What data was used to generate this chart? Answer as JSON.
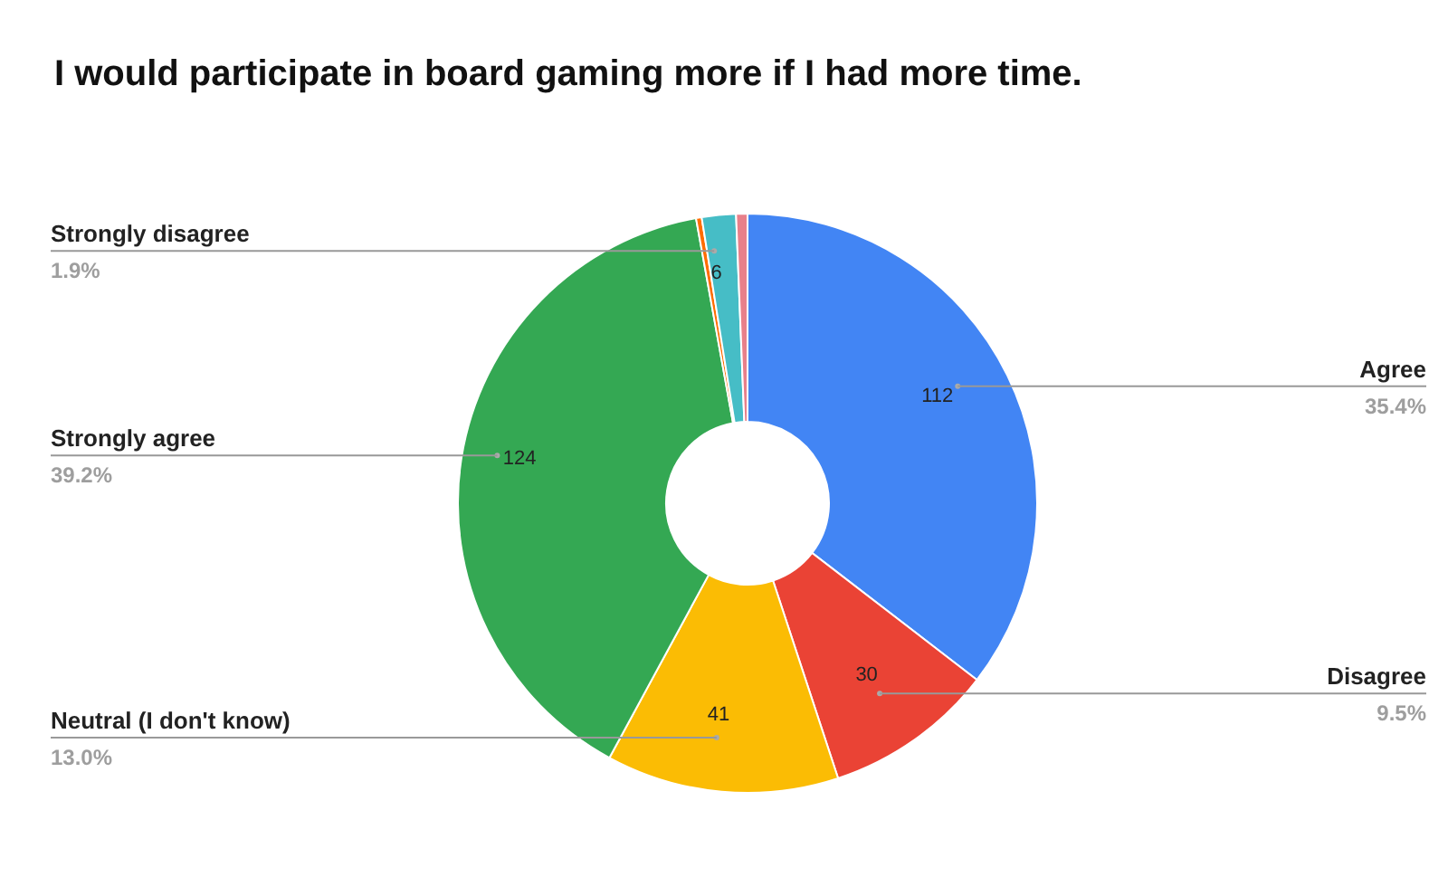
{
  "chart_data": {
    "type": "donut",
    "title": "I would participate in board gaming more if I had more time.",
    "categories": [
      "Agree",
      "Disagree",
      "Neutral (I don't know)",
      "Strongly agree",
      null,
      "Strongly disagree",
      null
    ],
    "values": [
      112,
      30,
      41,
      124,
      1,
      6,
      2
    ],
    "colors": [
      "#4285f4",
      "#ea4335",
      "#fbbc04",
      "#34a853",
      "#ff6d01",
      "#46bdc6",
      "#e8808a"
    ],
    "value_labels": [
      "112",
      "30",
      "41",
      "124",
      null,
      "6",
      null
    ],
    "annotations": [
      "35.4%",
      "9.5%",
      "13.0%",
      "39.2%",
      "1.9%"
    ],
    "legend": false
  }
}
